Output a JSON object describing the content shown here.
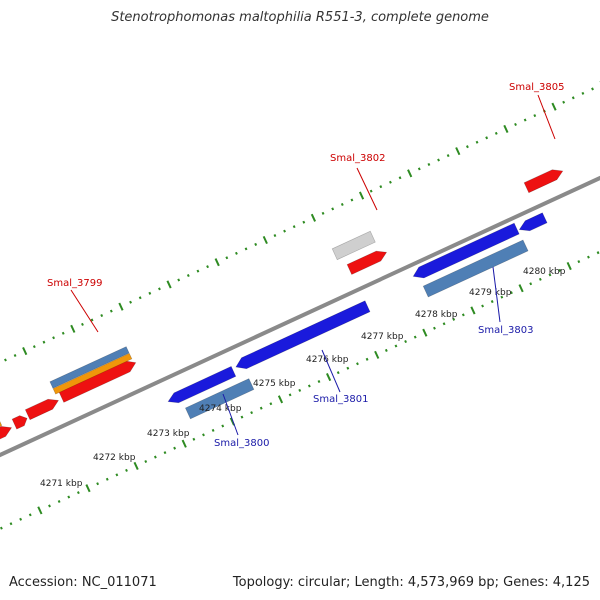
{
  "title": "Stenotrophomonas maltophilia R551-3, complete genome",
  "footer": {
    "accession": "Accession: NC_011071",
    "topology": "Topology: circular; Length: 4,573,969 bp; Genes: 4,125"
  },
  "colors": {
    "background": "#ffffff",
    "backbone": "#8a8a8a",
    "ticks": "#2e8b22",
    "forward_cds": "#ee1111",
    "reverse_cds": "#1a1adc",
    "steelblue_feature": "#4f7fb5",
    "orange_feature": "#f0960a",
    "gray_feature": "#cfcfcf",
    "forward_label": "#cc0000",
    "reverse_label": "#1a1aa8",
    "kbp_label": "#222222"
  },
  "kbp_labels": [
    "4271 kbp",
    "4272 kbp",
    "4273 kbp",
    "4274 kbp",
    "4275 kbp",
    "4276 kbp",
    "4277 kbp",
    "4278 kbp",
    "4279 kbp",
    "4280 kbp"
  ],
  "gene_labels": [
    {
      "name": "Smal_3799",
      "strand": "forward"
    },
    {
      "name": "Smal_3800",
      "strand": "reverse"
    },
    {
      "name": "Smal_3801",
      "strand": "reverse"
    },
    {
      "name": "Smal_3802",
      "strand": "forward"
    },
    {
      "name": "Smal_3803",
      "strand": "reverse"
    },
    {
      "name": "Smal_3805",
      "strand": "forward"
    }
  ]
}
